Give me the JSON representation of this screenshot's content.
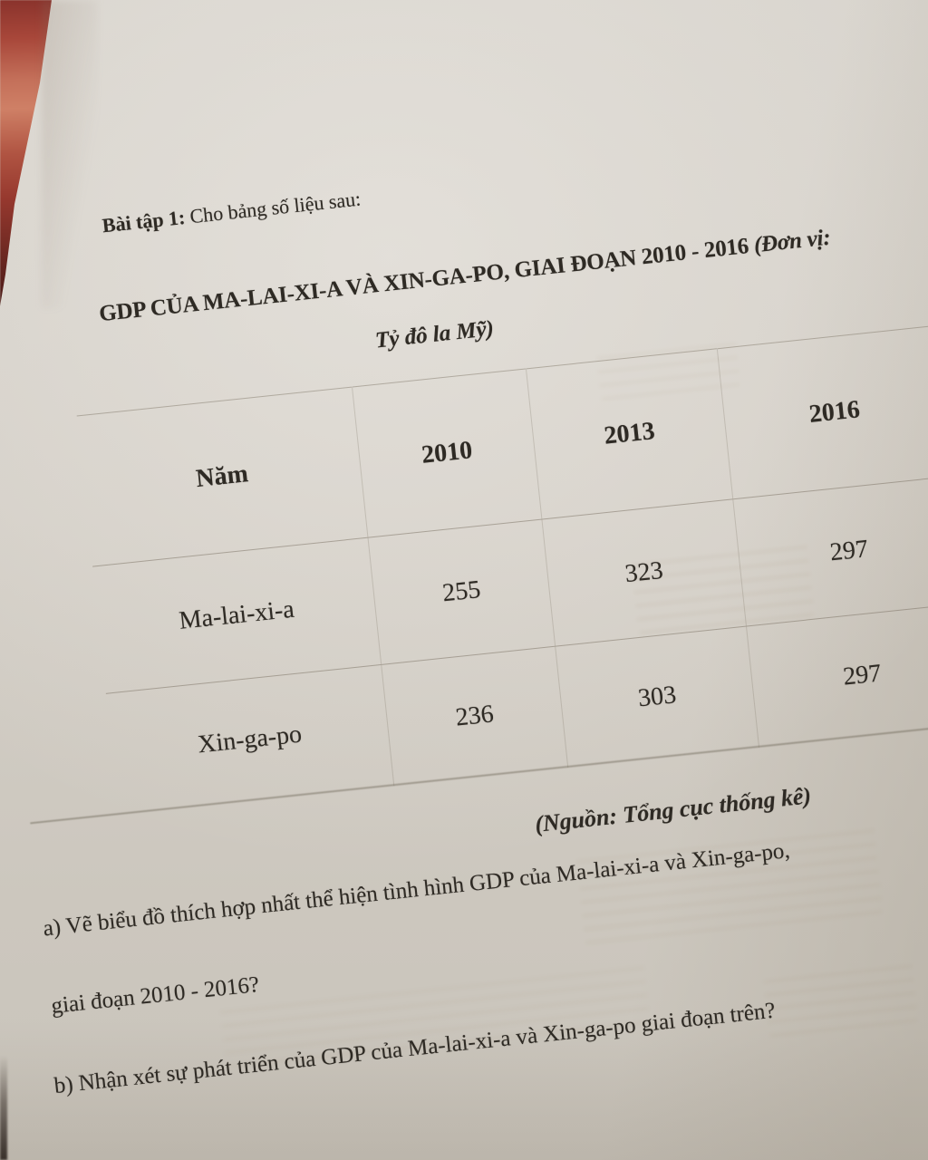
{
  "document": {
    "exercise_label": "Bài tập 1:",
    "exercise_intro": " Cho bảng số liệu sau:",
    "table_title": "GDP CỦA MA-LAI-XI-A VÀ XIN-GA-PO, GIAI ĐOẠN 2010 - 2016",
    "table_title_unit_open": " (Đơn vị:",
    "table_title_unit_rest": "Tỷ đô la Mỹ)",
    "source": "(Nguồn: Tổng cục thống kê)",
    "question_a_line1": "a) Vẽ biểu đồ thích hợp nhất thể hiện tình hình GDP của Ma-lai-xi-a và Xin-ga-po,",
    "question_a_line2": "giai đoạn 2010 - 2016?",
    "question_b": "b) Nhận xét sự phát triển của GDP của Ma-lai-xi-a và Xin-ga-po giai đoạn trên?"
  },
  "table": {
    "header": [
      "Năm",
      "2010",
      "2013",
      "2016"
    ],
    "rows": [
      {
        "label": "Ma-lai-xi-a",
        "values": [
          255,
          323,
          297
        ]
      },
      {
        "label": "Xin-ga-po",
        "values": [
          236,
          303,
          297
        ]
      }
    ]
  },
  "chart_data": {
    "type": "table",
    "title": "GDP CỦA MA-LAI-XI-A VÀ XIN-GA-PO, GIAI ĐOẠN 2010 - 2016",
    "unit": "Tỷ đô la Mỹ",
    "categories": [
      2010,
      2013,
      2016
    ],
    "series": [
      {
        "name": "Ma-lai-xi-a",
        "values": [
          255,
          323,
          297
        ]
      },
      {
        "name": "Xin-ga-po",
        "values": [
          236,
          303,
          297
        ]
      }
    ]
  },
  "colors": {
    "paper": "#d3cec6",
    "backdrop_red": "#a8473a",
    "ink": "#2e2a24",
    "table_line": "#786e5f"
  }
}
